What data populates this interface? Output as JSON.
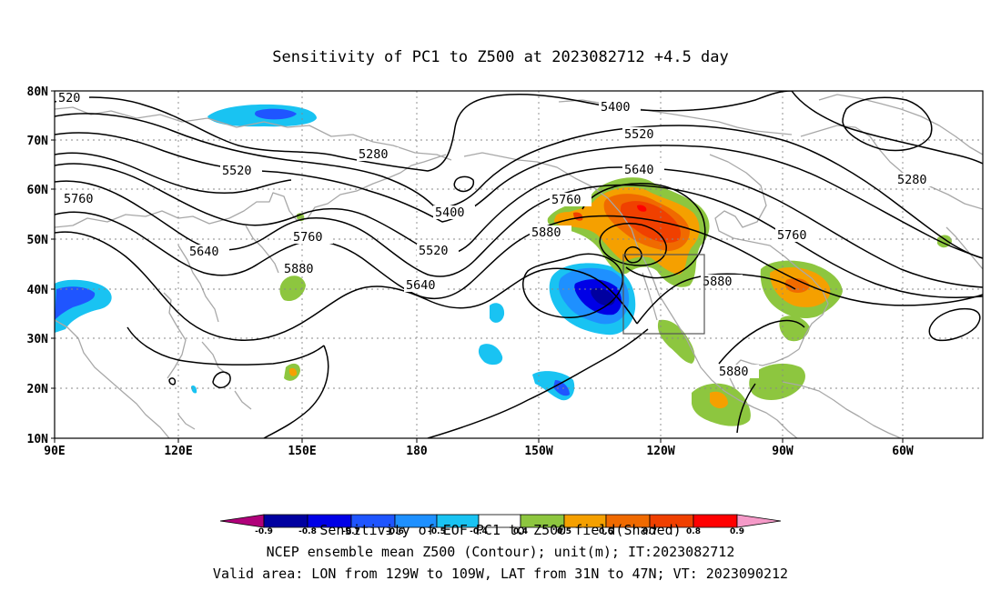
{
  "title": "Sensitivity of PC1 to Z500 at 2023082712 +4.5 day",
  "lat_labels": [
    "80N",
    "70N",
    "60N",
    "50N",
    "40N",
    "30N",
    "20N",
    "10N"
  ],
  "lon_labels": [
    "90E",
    "120E",
    "150E",
    "180",
    "150W",
    "120W",
    "90W",
    "60W"
  ],
  "contour_labels": [
    "520",
    "5280",
    "5400",
    "5520",
    "5640",
    "5760",
    "5880",
    "5400",
    "5520",
    "5640",
    "5760",
    "5880",
    "5760",
    "5640",
    "5520",
    "5400",
    "5280",
    "5760",
    "5880",
    "5880"
  ],
  "shading_colors": {
    "deep_purple": "#b0007a",
    "navy": "#0000a0",
    "blue": "#0000e6",
    "mid_blue": "#1f55ff",
    "light_blue": "#1e90ff",
    "cyan": "#19c3f2",
    "green": "#8dc63f",
    "orange": "#f5a000",
    "dark_orange": "#f06a00",
    "orange_red": "#f04000",
    "red": "#ff0000",
    "pink": "#f59ac8"
  },
  "colorbar_labels": [
    "-0.9",
    "-0.8",
    "-0.7",
    "-0.6",
    "-0.5",
    "-0.4",
    "0.4",
    "0.5",
    "0.6",
    "0.7",
    "0.8",
    "0.9"
  ],
  "captions": [
    "Sensitivity of EOF PC1 to Z500 field(Shaded)",
    "NCEP ensemble mean Z500 (Contour); unit(m); IT:2023082712",
    "Valid area: LON from 129W to 109W, LAT from 31N to 47N; VT: 2023090212"
  ]
}
